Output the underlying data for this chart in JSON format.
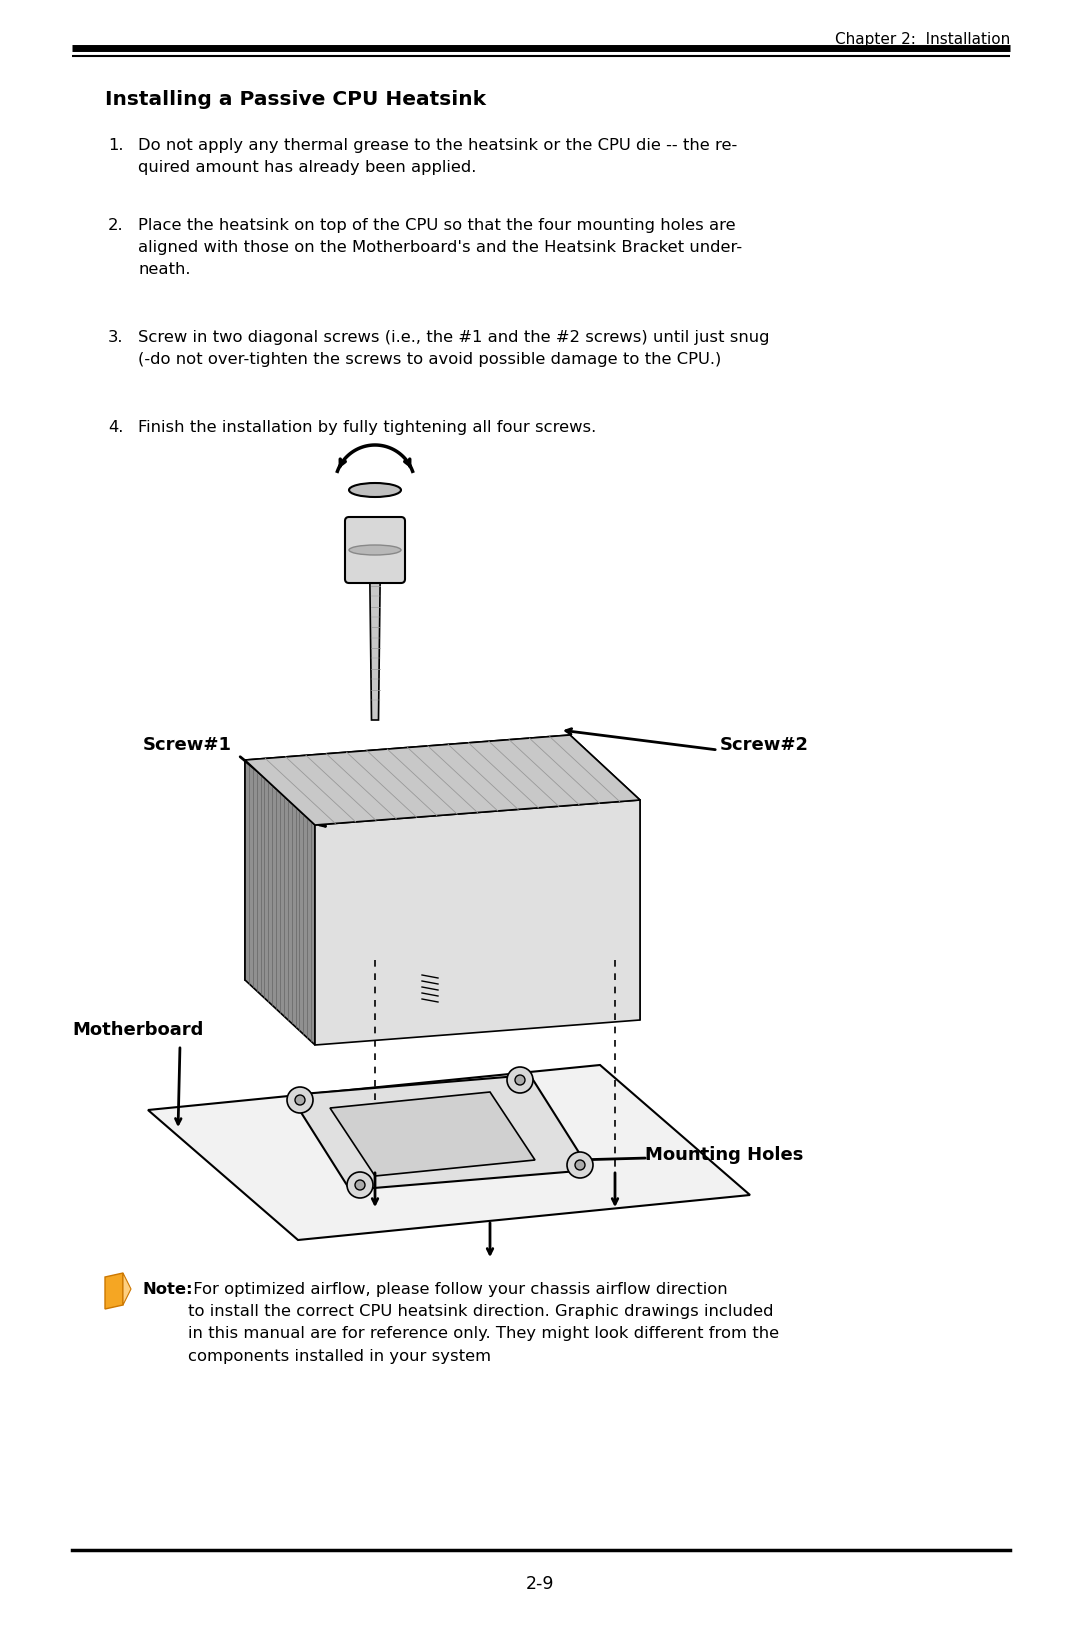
{
  "header_text": "Chapter 2:  Installation",
  "title": "Installing a Passive CPU Heatsink",
  "step1": "Do not apply any thermal grease to the heatsink or the CPU die -- the re-\nquired amount has already been applied.",
  "step2": "Place the heatsink on top of the CPU so that the four mounting holes are\naligned with those on the Motherboard's and the Heatsink Bracket under-\nneath.",
  "step3": "Screw in two diagonal screws (i.e., the #1 and the #2 screws) until just snug\n(-do not over-tighten the screws to avoid possible damage to the CPU.)",
  "step4": "Finish the installation by fully tightening all four screws.",
  "note_bold": "Note:",
  "note_text": " For optimized airflow, please follow your chassis airflow direction\nto install the correct CPU heatsink direction. Graphic drawings included\nin this manual are for reference only. They might look different from the\ncomponents installed in your system",
  "page_num": "2-9",
  "label_screw1": "Screw#1",
  "label_screw2": "Screw#2",
  "label_motherboard": "Motherboard",
  "label_mounting": "Mounting Holes",
  "bg_color": "#ffffff",
  "text_color": "#000000"
}
